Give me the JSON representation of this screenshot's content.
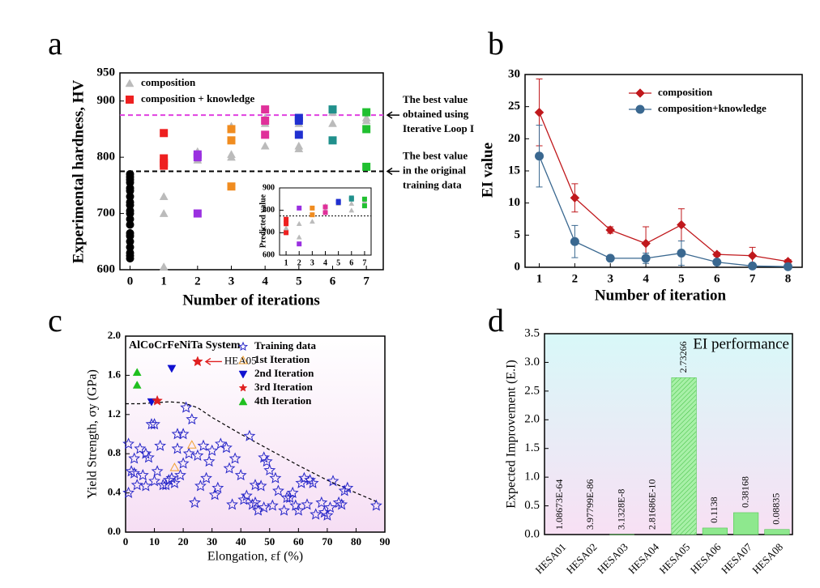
{
  "chart_data": [
    {
      "type": "scatter",
      "panel": "a",
      "xlabel": "Number of iterations",
      "ylabel": "Experimental hardness, HV",
      "xlim": [
        -0.3,
        7.5
      ],
      "ylim": [
        600,
        950
      ],
      "xticks": [
        0,
        1,
        2,
        3,
        4,
        5,
        6,
        7
      ],
      "yticks": [
        600,
        700,
        800,
        900,
        950
      ],
      "series": [
        {
          "color": "#000000",
          "marker": "circle",
          "x": [
            0,
            0,
            0,
            0,
            0,
            0,
            0,
            0,
            0,
            0,
            0,
            0,
            0,
            0,
            0,
            0,
            0,
            0,
            0,
            0
          ],
          "values": [
            620,
            625,
            630,
            640,
            650,
            660,
            665,
            680,
            690,
            700,
            705,
            715,
            720,
            730,
            740,
            745,
            755,
            760,
            765,
            770
          ]
        },
        {
          "name": "composition",
          "color": "#bbbbbb",
          "marker": "triangle",
          "x": [
            1,
            1,
            1,
            2,
            2,
            3,
            3,
            3,
            4,
            4,
            4,
            5,
            5,
            5,
            6,
            6,
            7,
            7
          ],
          "values": [
            605,
            700,
            730,
            795,
            810,
            800,
            805,
            855,
            820,
            860,
            870,
            815,
            820,
            860,
            860,
            880,
            865,
            870
          ]
        },
        {
          "name": "composition + knowledge",
          "color": "#ee2020",
          "marker": "square",
          "x": [
            1,
            1,
            1,
            1,
            2,
            2,
            2,
            3,
            3,
            3,
            4,
            4,
            4,
            5,
            5,
            5,
            6,
            6,
            7,
            7,
            7
          ],
          "values": [
            785,
            790,
            798,
            843,
            700,
            800,
            805,
            748,
            830,
            850,
            840,
            865,
            885,
            840,
            865,
            870,
            830,
            885,
            783,
            850,
            880
          ],
          "point_colors": [
            "#ee2020",
            "#ee2020",
            "#ee2020",
            "#ee2020",
            "#9a30e0",
            "#9a30e0",
            "#9a30e0",
            "#f08c20",
            "#f08c20",
            "#f08c20",
            "#e0309a",
            "#e0309a",
            "#e0309a",
            "#2030d0",
            "#2030d0",
            "#2030d0",
            "#20908c",
            "#20908c",
            "#20c030",
            "#20c030",
            "#20c030"
          ]
        }
      ],
      "hlines": [
        {
          "value": 875,
          "color": "#e040e0",
          "label": [
            "The best value",
            "obtained using",
            "Iterative Loop I"
          ]
        },
        {
          "value": 775,
          "color": "#000000",
          "label": [
            "The best value",
            "in the original",
            "training data"
          ]
        }
      ]
    },
    {
      "type": "scatter",
      "ylabel": "Predicted value",
      "xlim": [
        0.5,
        7.5
      ],
      "ylim": [
        600,
        900
      ],
      "xticks": [
        1,
        2,
        3,
        4,
        5,
        6,
        7
      ],
      "yticks": [
        600,
        700,
        800,
        900
      ],
      "series": [
        {
          "color": "#bbbbbb",
          "marker": "triangle",
          "x": [
            1,
            1,
            2,
            2,
            3,
            3,
            4,
            4,
            5,
            6,
            6,
            7,
            7
          ],
          "values": [
            720,
            760,
            680,
            740,
            750,
            780,
            800,
            820,
            830,
            800,
            830,
            830,
            840
          ]
        },
        {
          "color": "#ee2020",
          "marker": "square",
          "x": [
            1,
            1,
            1,
            2,
            2,
            3,
            3,
            4,
            4,
            5,
            5,
            6,
            6,
            7,
            7
          ],
          "values": [
            700,
            740,
            760,
            650,
            810,
            780,
            810,
            790,
            815,
            835,
            840,
            850,
            855,
            820,
            850
          ],
          "point_colors": [
            "#ee2020",
            "#ee2020",
            "#ee2020",
            "#9a30e0",
            "#9a30e0",
            "#f08c20",
            "#f08c20",
            "#e0309a",
            "#e0309a",
            "#2030d0",
            "#2030d0",
            "#20908c",
            "#20908c",
            "#20c030",
            "#20c030"
          ]
        }
      ],
      "hlines": [
        {
          "value": 775,
          "color": "#000000"
        }
      ]
    },
    {
      "type": "line",
      "panel": "b",
      "xlabel": "Number of iteration",
      "ylabel": "EI  value",
      "xlim": [
        0.6,
        8.4
      ],
      "ylim": [
        0,
        30
      ],
      "xticks": [
        1,
        2,
        3,
        4,
        5,
        6,
        7,
        8
      ],
      "yticks": [
        0,
        5,
        10,
        15,
        20,
        25,
        30
      ],
      "x": [
        1,
        2,
        3,
        4,
        5,
        6,
        7,
        8
      ],
      "series": [
        {
          "name": "composition",
          "color": "#c0181c",
          "marker": "diamond",
          "values": [
            24.1,
            10.8,
            5.8,
            3.7,
            6.6,
            2.0,
            1.8,
            0.9
          ],
          "errors": [
            5.2,
            2.2,
            0.5,
            2.6,
            2.5,
            0.3,
            1.3,
            0.3
          ]
        },
        {
          "name": "composition+knowledge",
          "color": "#3a6890",
          "marker": "circle",
          "values": [
            17.3,
            4.0,
            1.4,
            1.4,
            2.2,
            0.8,
            0.2,
            0.1
          ],
          "errors": [
            4.8,
            2.5,
            0.3,
            0.8,
            1.9,
            0.3,
            0.2,
            0.1
          ]
        }
      ]
    },
    {
      "type": "scatter",
      "panel": "c",
      "title": "AlCoCrFeNiTa System",
      "annotation": "HEA05",
      "xlabel": "Elongation, εf  (%)",
      "ylabel": "Yield Strength, σy (GPa)",
      "xlim": [
        0,
        90
      ],
      "ylim": [
        0,
        2.0
      ],
      "xticks": [
        0,
        10,
        20,
        30,
        40,
        50,
        60,
        70,
        80,
        90
      ],
      "yticks": [
        {
          "value": 0,
          "label": "0.0"
        },
        0.4,
        0.8,
        1.2,
        1.6,
        {
          "value": 2,
          "label": "2.0"
        }
      ],
      "boundary": {
        "x": [
          0,
          5,
          10,
          15,
          20,
          25,
          30,
          40,
          50,
          60,
          70,
          80,
          88
        ],
        "y": [
          1.31,
          1.31,
          1.32,
          1.33,
          1.32,
          1.27,
          1.17,
          1.0,
          0.84,
          0.68,
          0.53,
          0.4,
          0.3
        ]
      },
      "series": [
        {
          "name": "Training data",
          "color": "#2626c8",
          "marker": "star-open",
          "x": [
            1,
            1,
            2,
            3,
            3,
            4,
            5,
            6,
            7,
            7,
            8,
            9,
            10,
            10,
            11,
            12,
            13,
            14,
            15,
            16,
            17,
            18,
            18,
            19,
            20,
            20,
            21,
            22,
            23,
            24,
            25,
            26,
            27,
            28,
            29,
            30,
            31,
            32,
            33,
            35,
            36,
            37,
            38,
            40,
            41,
            42,
            43,
            44,
            45,
            45,
            46,
            47,
            48,
            48,
            49,
            50,
            51,
            52,
            53,
            55,
            56,
            57,
            58,
            59,
            60,
            61,
            62,
            63,
            64,
            65,
            66,
            68,
            69,
            70,
            71,
            72,
            74,
            75,
            76,
            77,
            87
          ],
          "values": [
            0.9,
            0.4,
            0.62,
            0.6,
            0.75,
            0.48,
            0.85,
            0.58,
            0.47,
            0.8,
            0.76,
            1.1,
            1.1,
            0.52,
            0.62,
            0.88,
            0.48,
            0.48,
            0.53,
            0.55,
            0.5,
            0.85,
            1.0,
            0.58,
            1.0,
            0.7,
            1.27,
            0.8,
            1.15,
            0.3,
            0.78,
            0.47,
            0.88,
            0.55,
            0.72,
            0.83,
            0.38,
            0.45,
            0.9,
            0.86,
            0.65,
            0.28,
            0.75,
            0.58,
            0.33,
            0.37,
            0.98,
            0.28,
            0.48,
            0.3,
            0.22,
            0.47,
            0.76,
            0.25,
            0.72,
            0.63,
            0.27,
            0.55,
            0.42,
            0.22,
            0.35,
            0.35,
            0.4,
            0.27,
            0.22,
            0.5,
            0.55,
            0.28,
            0.53,
            0.5,
            0.18,
            0.3,
            0.2,
            0.17,
            0.25,
            0.52,
            0.3,
            0.28,
            0.42,
            0.45,
            0.27
          ]
        },
        {
          "name": "1st Iteration",
          "color": "#f0a030",
          "marker": "triangle-open",
          "x": [
            17,
            23
          ],
          "values": [
            0.66,
            0.89
          ]
        },
        {
          "name": "2nd Iteration",
          "color": "#1010d0",
          "marker": "triangle-down",
          "x": [
            9,
            16
          ],
          "values": [
            1.33,
            1.67
          ]
        },
        {
          "name": "3rd Iteration",
          "color": "#e02020",
          "marker": "star",
          "x": [
            11,
            25
          ],
          "values": [
            1.34,
            1.74
          ]
        },
        {
          "name": "4th Iteration",
          "color": "#20c020",
          "marker": "triangle",
          "x": [
            4,
            4
          ],
          "values": [
            1.63,
            1.5
          ]
        }
      ]
    },
    {
      "type": "bar",
      "panel": "d",
      "annotation": "EI performance",
      "ylabel": "Expected Improvement (E.I)",
      "categories": [
        "HESA01",
        "HESA02",
        "HESA03",
        "HESA04",
        "HESA05",
        "HESA06",
        "HESA07",
        "HESA08"
      ],
      "values": [
        1.08673e-64,
        3.97799e-86,
        3.1328e-08,
        2.81686e-10,
        2.73266,
        0.1138,
        0.38168,
        0.08835
      ],
      "value_labels": [
        "1.08673E-64",
        "3.97799E-86",
        "3.1328E-8",
        "2.81686E-10",
        "2.73266",
        "0.1138",
        "0.38168",
        "0.08835"
      ],
      "highlight": 4,
      "highlight_color": "#e02020",
      "color": "#8ee88e",
      "ylim": [
        0,
        3.5
      ],
      "yticks": [
        {
          "value": 0,
          "label": "0.0"
        },
        0.5,
        {
          "value": 1,
          "label": "1.0"
        },
        1.5,
        {
          "value": 2,
          "label": "2.0"
        },
        2.5,
        {
          "value": 3,
          "label": "3.0"
        },
        3.5
      ]
    }
  ]
}
